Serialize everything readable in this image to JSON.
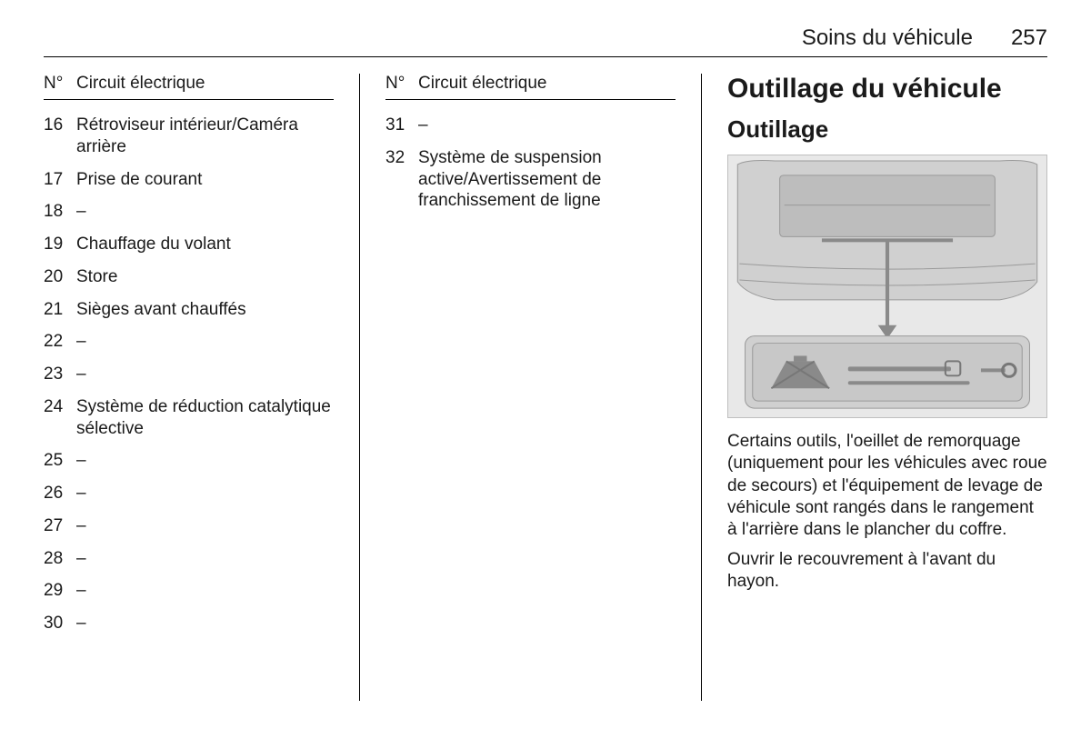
{
  "header": {
    "section_title": "Soins du véhicule",
    "page_number": "257"
  },
  "col1": {
    "table_header_num": "N°",
    "table_header_desc": "Circuit électrique",
    "rows": [
      {
        "num": "16",
        "desc": "Rétroviseur intérieur/Caméra arrière"
      },
      {
        "num": "17",
        "desc": "Prise de courant"
      },
      {
        "num": "18",
        "desc": "–"
      },
      {
        "num": "19",
        "desc": "Chauffage du volant"
      },
      {
        "num": "20",
        "desc": "Store"
      },
      {
        "num": "21",
        "desc": "Sièges avant chauffés"
      },
      {
        "num": "22",
        "desc": "–"
      },
      {
        "num": "23",
        "desc": "–"
      },
      {
        "num": "24",
        "desc": "Système de réduction catalytique sélective"
      },
      {
        "num": "25",
        "desc": "–"
      },
      {
        "num": "26",
        "desc": "–"
      },
      {
        "num": "27",
        "desc": "–"
      },
      {
        "num": "28",
        "desc": "–"
      },
      {
        "num": "29",
        "desc": "–"
      },
      {
        "num": "30",
        "desc": "–"
      }
    ]
  },
  "col2": {
    "table_header_num": "N°",
    "table_header_desc": "Circuit électrique",
    "rows": [
      {
        "num": "31",
        "desc": "–"
      },
      {
        "num": "32",
        "desc": "Système de suspension active/Avertissement de franchissement de ligne"
      }
    ]
  },
  "col3": {
    "h1": "Outillage du véhicule",
    "h2": "Outillage",
    "paragraphs": [
      "Certains outils, l'oeillet de remorquage (uniquement pour les véhicules avec roue de secours) et l'équipement de levage de véhicule sont rangés dans le rangement à l'arrière dans le plancher du coffre.",
      "Ouvrir le recouvrement à l'avant du hayon."
    ]
  },
  "figure": {
    "bg": "#e8e8e8",
    "panel": "#d0d0d0",
    "panel_dark": "#bdbdbd",
    "outline": "#9a9a9a",
    "tool_dark": "#8a8a8a",
    "tool_light": "#c8c8c8"
  }
}
